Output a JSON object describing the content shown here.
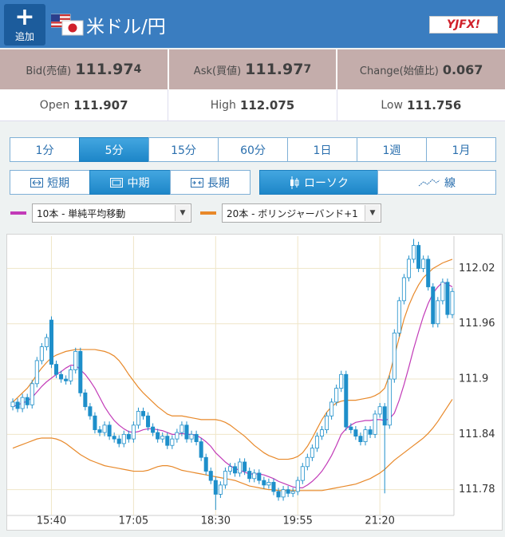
{
  "header": {
    "add_button": "追加",
    "pair": "米ドル/円",
    "logo": "YJFX!"
  },
  "quotes": {
    "bid": {
      "label": "Bid(売値)",
      "value": "111.97",
      "pip": "4"
    },
    "ask": {
      "label": "Ask(買値)",
      "value": "111.97",
      "pip": "7"
    },
    "change": {
      "label": "Change(始値比)",
      "value": "0.067"
    }
  },
  "summary": {
    "open": {
      "label": "Open",
      "value": "111.907"
    },
    "high": {
      "label": "High",
      "value": "112.075"
    },
    "low": {
      "label": "Low",
      "value": "111.756"
    }
  },
  "timeframes": [
    "1分",
    "5分",
    "15分",
    "60分",
    "1日",
    "1週",
    "1月"
  ],
  "periods": [
    "短期",
    "中期",
    "長期"
  ],
  "styles": [
    "ローソク",
    "線"
  ],
  "chart_data": {
    "type": "candlestick",
    "categories": [
      null,
      null,
      null,
      null,
      null,
      null,
      null,
      null,
      "15:40",
      null,
      null,
      null,
      null,
      null,
      null,
      null,
      null,
      null,
      null,
      null,
      null,
      null,
      null,
      null,
      null,
      "17:05",
      null,
      null,
      null,
      null,
      null,
      null,
      null,
      null,
      null,
      null,
      null,
      null,
      null,
      null,
      null,
      null,
      "18:30",
      null,
      null,
      null,
      null,
      null,
      null,
      null,
      null,
      null,
      null,
      null,
      null,
      null,
      null,
      null,
      null,
      "19:55",
      null,
      null,
      null,
      null,
      null,
      null,
      null,
      null,
      null,
      null,
      null,
      null,
      null,
      null,
      null,
      null,
      "21:20",
      null,
      null,
      null,
      null,
      null,
      null,
      null,
      null,
      null,
      null,
      null,
      null,
      null,
      null,
      null
    ],
    "open": [
      111.87,
      111.875,
      111.868,
      111.88,
      111.872,
      111.895,
      111.92,
      111.935,
      111.964,
      111.916,
      111.905,
      111.9,
      111.898,
      111.91,
      111.93,
      111.885,
      111.87,
      111.86,
      111.845,
      111.842,
      111.85,
      111.838,
      111.835,
      111.83,
      111.84,
      111.835,
      111.85,
      111.865,
      111.86,
      111.848,
      111.842,
      111.835,
      111.838,
      111.828,
      111.835,
      111.842,
      111.85,
      111.835,
      111.84,
      111.832,
      111.815,
      111.8,
      111.79,
      111.775,
      111.785,
      111.8,
      111.805,
      111.798,
      111.81,
      111.8,
      111.792,
      111.798,
      111.79,
      111.785,
      111.788,
      111.778,
      111.772,
      111.78,
      111.776,
      111.778,
      111.79,
      111.805,
      111.815,
      111.825,
      111.838,
      111.845,
      111.86,
      111.875,
      111.89,
      111.905,
      111.848,
      111.845,
      111.838,
      111.832,
      111.845,
      111.84,
      111.862,
      111.87,
      111.85,
      111.9,
      111.95,
      111.985,
      112.01,
      112.03,
      112.045,
      112.02,
      112.03,
      112.0,
      111.96,
      111.985,
      112.005,
      111.97
    ],
    "high": [
      111.879,
      111.879,
      111.884,
      111.884,
      111.899,
      111.924,
      111.939,
      111.949,
      111.968,
      111.92,
      111.909,
      111.904,
      111.914,
      111.934,
      111.934,
      111.889,
      111.874,
      111.864,
      111.849,
      111.854,
      111.854,
      111.842,
      111.839,
      111.844,
      111.844,
      111.854,
      111.869,
      111.869,
      111.864,
      111.852,
      111.846,
      111.842,
      111.842,
      111.839,
      111.846,
      111.854,
      111.854,
      111.844,
      111.844,
      111.836,
      111.819,
      111.804,
      111.794,
      111.789,
      111.804,
      111.809,
      111.809,
      111.814,
      111.814,
      111.804,
      111.802,
      111.802,
      111.794,
      111.792,
      111.792,
      111.782,
      111.784,
      111.784,
      111.782,
      111.794,
      111.809,
      111.819,
      111.829,
      111.842,
      111.849,
      111.864,
      111.879,
      111.894,
      111.909,
      111.909,
      111.852,
      111.849,
      111.842,
      111.849,
      111.849,
      111.866,
      111.874,
      111.874,
      111.904,
      111.954,
      111.989,
      112.014,
      112.034,
      112.052,
      112.049,
      112.034,
      112.034,
      112.004,
      111.989,
      112.009,
      112.009,
      111.999
    ],
    "low": [
      111.866,
      111.864,
      111.864,
      111.868,
      111.868,
      111.891,
      111.916,
      111.931,
      111.912,
      111.901,
      111.896,
      111.894,
      111.894,
      111.906,
      111.881,
      111.866,
      111.856,
      111.841,
      111.838,
      111.838,
      111.834,
      111.831,
      111.826,
      111.826,
      111.831,
      111.831,
      111.846,
      111.856,
      111.844,
      111.838,
      111.831,
      111.831,
      111.824,
      111.824,
      111.831,
      111.838,
      111.831,
      111.831,
      111.828,
      111.811,
      111.796,
      111.786,
      111.758,
      111.771,
      111.781,
      111.796,
      111.794,
      111.794,
      111.796,
      111.788,
      111.788,
      111.786,
      111.781,
      111.781,
      111.774,
      111.768,
      111.768,
      111.772,
      111.772,
      111.774,
      111.786,
      111.801,
      111.811,
      111.821,
      111.834,
      111.841,
      111.856,
      111.871,
      111.886,
      111.844,
      111.841,
      111.834,
      111.828,
      111.828,
      111.836,
      111.836,
      111.858,
      111.776,
      111.846,
      111.896,
      111.946,
      111.981,
      112.006,
      112.026,
      112.016,
      112.016,
      111.996,
      111.956,
      111.956,
      111.981,
      111.966,
      111.966
    ],
    "close": [
      111.875,
      111.868,
      111.88,
      111.872,
      111.895,
      111.92,
      111.935,
      111.945,
      111.916,
      111.905,
      111.9,
      111.898,
      111.91,
      111.93,
      111.885,
      111.87,
      111.86,
      111.845,
      111.842,
      111.85,
      111.838,
      111.835,
      111.83,
      111.84,
      111.835,
      111.85,
      111.865,
      111.86,
      111.848,
      111.842,
      111.835,
      111.838,
      111.828,
      111.835,
      111.842,
      111.85,
      111.835,
      111.84,
      111.832,
      111.815,
      111.8,
      111.79,
      111.775,
      111.785,
      111.8,
      111.805,
      111.798,
      111.81,
      111.8,
      111.792,
      111.798,
      111.79,
      111.785,
      111.788,
      111.778,
      111.772,
      111.78,
      111.776,
      111.778,
      111.79,
      111.805,
      111.815,
      111.825,
      111.838,
      111.845,
      111.86,
      111.875,
      111.89,
      111.905,
      111.848,
      111.845,
      111.838,
      111.832,
      111.845,
      111.84,
      111.862,
      111.87,
      111.85,
      111.9,
      111.95,
      111.985,
      112.01,
      112.03,
      112.045,
      112.02,
      112.03,
      112.0,
      111.96,
      111.985,
      112.005,
      111.97,
      111.995
    ],
    "up_color": "#ffffff",
    "down_color": "#1e8fca",
    "candle_stroke": "#1e8fca",
    "lines": [
      {
        "name": "10本 - 単純平均移動",
        "color": "#c23bb8",
        "values": [
          111.87,
          111.872,
          111.874,
          111.876,
          111.88,
          111.886,
          111.892,
          111.897,
          111.901,
          111.905,
          111.908,
          111.912,
          111.915,
          111.915,
          111.91,
          111.905,
          111.898,
          111.89,
          111.88,
          111.87,
          111.862,
          111.855,
          111.85,
          111.846,
          111.843,
          111.842,
          111.843,
          111.845,
          111.846,
          111.846,
          111.845,
          111.844,
          111.842,
          111.84,
          111.84,
          111.841,
          111.84,
          111.84,
          111.839,
          111.836,
          111.832,
          111.827,
          111.82,
          111.815,
          111.81,
          111.806,
          111.803,
          111.801,
          111.799,
          111.797,
          111.797,
          111.797,
          111.796,
          111.794,
          111.792,
          111.789,
          111.787,
          111.785,
          111.783,
          111.782,
          111.782,
          111.785,
          111.789,
          111.794,
          111.8,
          111.808,
          111.817,
          111.828,
          111.84,
          111.846,
          111.85,
          111.853,
          111.854,
          111.855,
          111.855,
          111.856,
          111.856,
          111.855,
          111.857,
          111.863,
          111.877,
          111.894,
          111.913,
          111.933,
          111.951,
          111.968,
          111.982,
          111.993,
          112.0,
          112.005,
          112.003,
          112.0
        ]
      },
      {
        "name": "20本 - ボリンジャーバンド+1",
        "color": "#e8892a",
        "upper": [
          111.875,
          111.88,
          111.885,
          111.89,
          111.897,
          111.905,
          111.912,
          111.918,
          111.923,
          111.926,
          111.928,
          111.93,
          111.931,
          111.932,
          111.932,
          111.932,
          111.932,
          111.932,
          111.931,
          111.93,
          111.928,
          111.925,
          111.92,
          111.913,
          111.905,
          111.898,
          111.891,
          111.885,
          111.88,
          111.875,
          111.87,
          111.866,
          111.862,
          111.86,
          111.86,
          111.86,
          111.859,
          111.858,
          111.857,
          111.856,
          111.856,
          111.856,
          111.856,
          111.855,
          111.853,
          111.85,
          111.846,
          111.842,
          111.838,
          111.833,
          111.828,
          111.824,
          111.82,
          111.817,
          111.815,
          111.813,
          111.813,
          111.813,
          111.814,
          111.816,
          111.82,
          111.827,
          111.836,
          111.846,
          111.856,
          111.864,
          111.87,
          111.874,
          111.876,
          111.877,
          111.877,
          111.877,
          111.878,
          111.879,
          111.88,
          111.882,
          111.885,
          111.89,
          111.905,
          111.925,
          111.945,
          111.965,
          111.98,
          111.992,
          112.002,
          112.01,
          112.015,
          112.02,
          112.023,
          112.026,
          112.028,
          112.03
        ],
        "lower": [
          111.825,
          111.827,
          111.829,
          111.831,
          111.833,
          111.835,
          111.836,
          111.836,
          111.836,
          111.835,
          111.833,
          111.83,
          111.826,
          111.822,
          111.818,
          111.815,
          111.812,
          111.81,
          111.808,
          111.806,
          111.805,
          111.804,
          111.803,
          111.802,
          111.801,
          111.8,
          111.8,
          111.8,
          111.801,
          111.803,
          111.805,
          111.806,
          111.806,
          111.805,
          111.803,
          111.801,
          111.8,
          111.799,
          111.798,
          111.797,
          111.796,
          111.795,
          111.794,
          111.793,
          111.792,
          111.791,
          111.79,
          111.788,
          111.786,
          111.784,
          111.783,
          111.782,
          111.781,
          111.78,
          111.78,
          111.779,
          111.779,
          111.779,
          111.779,
          111.779,
          111.779,
          111.779,
          111.779,
          111.779,
          111.779,
          111.78,
          111.781,
          111.782,
          111.783,
          111.784,
          111.785,
          111.786,
          111.788,
          111.79,
          111.792,
          111.795,
          111.798,
          111.802,
          111.807,
          111.812,
          111.816,
          111.82,
          111.824,
          111.828,
          111.832,
          111.836,
          111.841,
          111.847,
          111.854,
          111.862,
          111.87,
          111.878
        ]
      }
    ],
    "ylim": [
      111.752,
      112.055
    ],
    "yticks": [
      111.78,
      111.84,
      111.9,
      111.96,
      112.02
    ],
    "grid": true,
    "grid_color": "#efe6c8",
    "y_axis_side": "right"
  }
}
